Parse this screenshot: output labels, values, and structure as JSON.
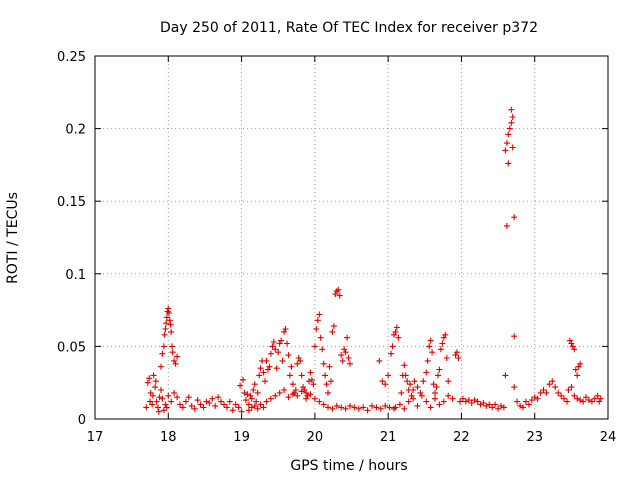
{
  "chart_data": {
    "type": "scatter",
    "title": "Day 250 of 2011, Rate Of TEC Index for receiver p372",
    "xlabel": "GPS time / hours",
    "ylabel": "ROTI / TECUs",
    "xlim": [
      17,
      24
    ],
    "ylim": [
      0,
      0.25
    ],
    "xticks": [
      "17",
      "18",
      "19",
      "20",
      "21",
      "22",
      "23",
      "24"
    ],
    "yticks": [
      "0",
      "0.05",
      "0.1",
      "0.15",
      "0.2",
      "0.25"
    ],
    "grid": true,
    "marker": "plus",
    "color": "#e00000",
    "series": [
      {
        "points": [
          [
            17.7,
            0.008
          ],
          [
            17.72,
            0.025
          ],
          [
            17.74,
            0.028
          ],
          [
            17.76,
            0.018
          ],
          [
            17.78,
            0.01
          ],
          [
            17.8,
            0.03
          ],
          [
            17.82,
            0.022
          ],
          [
            17.84,
            0.012
          ],
          [
            17.86,
            0.008
          ],
          [
            17.88,
            0.015
          ],
          [
            17.9,
            0.02
          ],
          [
            17.92,
            0.014
          ],
          [
            17.94,
            0.006
          ],
          [
            17.96,
            0.01
          ],
          [
            17.98,
            0.008
          ],
          [
            17.75,
            0.012
          ],
          [
            17.79,
            0.016
          ],
          [
            17.83,
            0.026
          ],
          [
            17.87,
            0.005
          ],
          [
            17.9,
            0.036
          ],
          [
            17.92,
            0.045
          ],
          [
            17.94,
            0.05
          ],
          [
            17.95,
            0.058
          ],
          [
            17.96,
            0.062
          ],
          [
            17.97,
            0.066
          ],
          [
            17.98,
            0.07
          ],
          [
            17.99,
            0.074
          ],
          [
            18.0,
            0.076
          ],
          [
            18.01,
            0.073
          ],
          [
            18.02,
            0.068
          ],
          [
            18.03,
            0.065
          ],
          [
            18.04,
            0.06
          ],
          [
            18.05,
            0.05
          ],
          [
            18.06,
            0.046
          ],
          [
            18.08,
            0.04
          ],
          [
            18.1,
            0.038
          ],
          [
            18.12,
            0.043
          ],
          [
            18.0,
            0.016
          ],
          [
            18.04,
            0.012
          ],
          [
            18.08,
            0.018
          ],
          [
            18.12,
            0.015
          ],
          [
            18.16,
            0.01
          ],
          [
            18.2,
            0.008
          ],
          [
            18.24,
            0.012
          ],
          [
            18.28,
            0.015
          ],
          [
            18.32,
            0.009
          ],
          [
            18.36,
            0.007
          ],
          [
            18.4,
            0.013
          ],
          [
            18.44,
            0.01
          ],
          [
            18.48,
            0.008
          ],
          [
            18.52,
            0.012
          ],
          [
            18.56,
            0.011
          ],
          [
            18.6,
            0.014
          ],
          [
            18.64,
            0.009
          ],
          [
            18.68,
            0.015
          ],
          [
            18.72,
            0.012
          ],
          [
            18.76,
            0.01
          ],
          [
            18.8,
            0.008
          ],
          [
            18.84,
            0.012
          ],
          [
            18.88,
            0.006
          ],
          [
            18.92,
            0.01
          ],
          [
            18.96,
            0.008
          ],
          [
            19.0,
            0.005
          ],
          [
            18.98,
            0.023
          ],
          [
            19.02,
            0.027
          ],
          [
            19.04,
            0.018
          ],
          [
            19.06,
            0.013
          ],
          [
            19.08,
            0.017
          ],
          [
            19.1,
            0.01
          ],
          [
            19.12,
            0.016
          ],
          [
            19.14,
            0.014
          ],
          [
            19.16,
            0.02
          ],
          [
            19.18,
            0.024
          ],
          [
            19.2,
            0.012
          ],
          [
            19.22,
            0.018
          ],
          [
            19.24,
            0.03
          ],
          [
            19.26,
            0.035
          ],
          [
            19.28,
            0.04
          ],
          [
            19.3,
            0.032
          ],
          [
            19.32,
            0.026
          ],
          [
            19.34,
            0.04
          ],
          [
            19.36,
            0.034
          ],
          [
            19.38,
            0.036
          ],
          [
            19.4,
            0.045
          ],
          [
            19.42,
            0.05
          ],
          [
            19.44,
            0.053
          ],
          [
            19.46,
            0.048
          ],
          [
            19.48,
            0.035
          ],
          [
            19.5,
            0.046
          ],
          [
            19.52,
            0.052
          ],
          [
            19.54,
            0.054
          ],
          [
            19.56,
            0.04
          ],
          [
            19.58,
            0.06
          ],
          [
            19.6,
            0.062
          ],
          [
            19.62,
            0.052
          ],
          [
            19.64,
            0.044
          ],
          [
            19.66,
            0.03
          ],
          [
            19.68,
            0.036
          ],
          [
            19.7,
            0.024
          ],
          [
            19.72,
            0.018
          ],
          [
            19.74,
            0.02
          ],
          [
            19.76,
            0.038
          ],
          [
            19.78,
            0.042
          ],
          [
            19.8,
            0.04
          ],
          [
            19.82,
            0.03
          ],
          [
            19.84,
            0.022
          ],
          [
            19.86,
            0.02
          ],
          [
            19.88,
            0.018
          ],
          [
            19.9,
            0.016
          ],
          [
            19.92,
            0.026
          ],
          [
            19.94,
            0.032
          ],
          [
            19.96,
            0.027
          ],
          [
            19.98,
            0.024
          ],
          [
            20.0,
            0.05
          ],
          [
            20.02,
            0.062
          ],
          [
            20.04,
            0.068
          ],
          [
            20.06,
            0.072
          ],
          [
            20.08,
            0.056
          ],
          [
            20.1,
            0.048
          ],
          [
            20.12,
            0.038
          ],
          [
            20.14,
            0.03
          ],
          [
            20.16,
            0.024
          ],
          [
            20.18,
            0.018
          ],
          [
            20.2,
            0.036
          ],
          [
            20.22,
            0.026
          ],
          [
            20.24,
            0.06
          ],
          [
            20.26,
            0.064
          ],
          [
            20.28,
            0.086
          ],
          [
            20.3,
            0.088
          ],
          [
            20.32,
            0.089
          ],
          [
            20.34,
            0.085
          ],
          [
            20.36,
            0.044
          ],
          [
            20.38,
            0.04
          ],
          [
            20.4,
            0.048
          ],
          [
            20.42,
            0.046
          ],
          [
            20.44,
            0.056
          ],
          [
            20.46,
            0.042
          ],
          [
            20.48,
            0.038
          ],
          [
            19.1,
            0.006
          ],
          [
            19.14,
            0.008
          ],
          [
            19.18,
            0.009
          ],
          [
            19.22,
            0.007
          ],
          [
            19.26,
            0.01
          ],
          [
            19.3,
            0.008
          ],
          [
            19.34,
            0.012
          ],
          [
            19.4,
            0.014
          ],
          [
            19.46,
            0.016
          ],
          [
            19.52,
            0.018
          ],
          [
            19.58,
            0.02
          ],
          [
            19.64,
            0.015
          ],
          [
            19.7,
            0.017
          ],
          [
            19.76,
            0.016
          ],
          [
            19.82,
            0.019
          ],
          [
            19.88,
            0.014
          ],
          [
            19.94,
            0.017
          ],
          [
            20.0,
            0.014
          ],
          [
            20.06,
            0.012
          ],
          [
            20.12,
            0.01
          ],
          [
            20.18,
            0.008
          ],
          [
            20.24,
            0.007
          ],
          [
            20.3,
            0.009
          ],
          [
            20.36,
            0.008
          ],
          [
            20.42,
            0.007
          ],
          [
            20.48,
            0.009
          ],
          [
            20.54,
            0.008
          ],
          [
            20.6,
            0.007
          ],
          [
            20.66,
            0.008
          ],
          [
            20.72,
            0.006
          ],
          [
            20.78,
            0.009
          ],
          [
            20.84,
            0.008
          ],
          [
            20.9,
            0.007
          ],
          [
            20.96,
            0.009
          ],
          [
            21.02,
            0.008
          ],
          [
            21.08,
            0.007
          ],
          [
            20.88,
            0.04
          ],
          [
            20.92,
            0.026
          ],
          [
            20.96,
            0.024
          ],
          [
            21.0,
            0.03
          ],
          [
            21.04,
            0.045
          ],
          [
            21.06,
            0.05
          ],
          [
            21.08,
            0.058
          ],
          [
            21.1,
            0.06
          ],
          [
            21.12,
            0.063
          ],
          [
            21.14,
            0.056
          ],
          [
            21.18,
            0.018
          ],
          [
            21.2,
            0.03
          ],
          [
            21.22,
            0.037
          ],
          [
            21.24,
            0.03
          ],
          [
            21.26,
            0.026
          ],
          [
            21.28,
            0.02
          ],
          [
            21.3,
            0.024
          ],
          [
            21.32,
            0.016
          ],
          [
            21.34,
            0.02
          ],
          [
            21.36,
            0.026
          ],
          [
            21.4,
            0.022
          ],
          [
            21.44,
            0.018
          ],
          [
            21.48,
            0.026
          ],
          [
            21.52,
            0.032
          ],
          [
            21.54,
            0.04
          ],
          [
            21.56,
            0.05
          ],
          [
            21.58,
            0.054
          ],
          [
            21.6,
            0.046
          ],
          [
            21.62,
            0.024
          ],
          [
            21.64,
            0.018
          ],
          [
            21.66,
            0.022
          ],
          [
            21.68,
            0.03
          ],
          [
            21.7,
            0.034
          ],
          [
            21.72,
            0.048
          ],
          [
            21.74,
            0.052
          ],
          [
            21.76,
            0.056
          ],
          [
            21.78,
            0.058
          ],
          [
            21.8,
            0.042
          ],
          [
            21.82,
            0.026
          ],
          [
            21.1,
            0.008
          ],
          [
            21.16,
            0.01
          ],
          [
            21.22,
            0.007
          ],
          [
            21.28,
            0.012
          ],
          [
            21.34,
            0.014
          ],
          [
            21.4,
            0.009
          ],
          [
            21.46,
            0.016
          ],
          [
            21.52,
            0.012
          ],
          [
            21.58,
            0.008
          ],
          [
            21.64,
            0.014
          ],
          [
            21.7,
            0.01
          ],
          [
            21.76,
            0.012
          ],
          [
            21.82,
            0.016
          ],
          [
            21.88,
            0.014
          ],
          [
            21.92,
            0.044
          ],
          [
            21.94,
            0.046
          ],
          [
            21.96,
            0.042
          ],
          [
            21.98,
            0.012
          ],
          [
            22.02,
            0.014
          ],
          [
            22.06,
            0.012
          ],
          [
            22.1,
            0.013
          ],
          [
            22.14,
            0.011
          ],
          [
            22.18,
            0.013
          ],
          [
            22.22,
            0.012
          ],
          [
            22.26,
            0.01
          ],
          [
            22.3,
            0.011
          ],
          [
            22.34,
            0.009
          ],
          [
            22.38,
            0.01
          ],
          [
            22.42,
            0.008
          ],
          [
            22.46,
            0.01
          ],
          [
            22.5,
            0.007
          ],
          [
            22.54,
            0.009
          ],
          [
            22.58,
            0.008
          ],
          [
            22.6,
            0.03
          ],
          [
            22.62,
            0.133
          ],
          [
            22.64,
            0.176
          ],
          [
            22.6,
            0.185
          ],
          [
            22.62,
            0.19
          ],
          [
            22.64,
            0.196
          ],
          [
            22.66,
            0.2
          ],
          [
            22.68,
            0.204
          ],
          [
            22.7,
            0.208
          ],
          [
            22.68,
            0.213
          ],
          [
            22.7,
            0.187
          ],
          [
            22.72,
            0.139
          ],
          [
            22.72,
            0.057
          ],
          [
            22.72,
            0.022
          ],
          [
            22.76,
            0.012
          ],
          [
            22.8,
            0.009
          ],
          [
            22.84,
            0.008
          ],
          [
            22.88,
            0.012
          ],
          [
            22.92,
            0.01
          ],
          [
            22.96,
            0.013
          ],
          [
            23.0,
            0.015
          ],
          [
            23.04,
            0.014
          ],
          [
            23.08,
            0.018
          ],
          [
            23.12,
            0.02
          ],
          [
            23.16,
            0.018
          ],
          [
            23.2,
            0.024
          ],
          [
            23.24,
            0.026
          ],
          [
            23.28,
            0.022
          ],
          [
            23.32,
            0.018
          ],
          [
            23.36,
            0.016
          ],
          [
            23.4,
            0.014
          ],
          [
            23.44,
            0.012
          ],
          [
            23.48,
            0.054
          ],
          [
            23.5,
            0.052
          ],
          [
            23.52,
            0.05
          ],
          [
            23.54,
            0.048
          ],
          [
            23.56,
            0.034
          ],
          [
            23.58,
            0.03
          ],
          [
            23.6,
            0.036
          ],
          [
            23.62,
            0.038
          ],
          [
            23.46,
            0.02
          ],
          [
            23.5,
            0.022
          ],
          [
            23.54,
            0.016
          ],
          [
            23.58,
            0.014
          ],
          [
            23.62,
            0.013
          ],
          [
            23.66,
            0.012
          ],
          [
            23.7,
            0.015
          ],
          [
            23.74,
            0.013
          ],
          [
            23.78,
            0.012
          ],
          [
            23.82,
            0.014
          ],
          [
            23.86,
            0.016
          ],
          [
            23.88,
            0.012
          ],
          [
            23.9,
            0.014
          ]
        ]
      }
    ]
  }
}
